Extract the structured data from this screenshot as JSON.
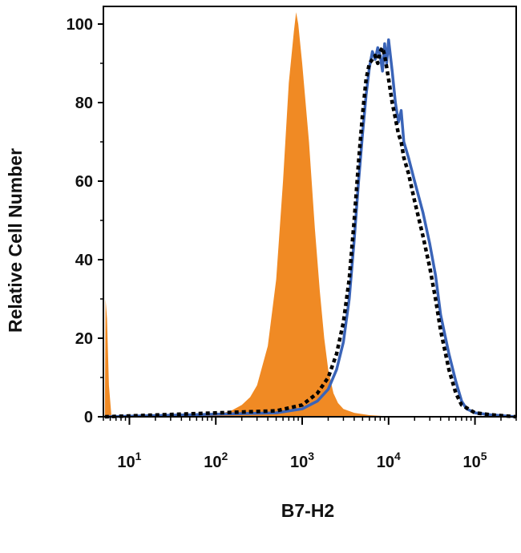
{
  "chart_data": {
    "type": "area",
    "title": "",
    "xlabel": "B7-H2",
    "ylabel": "Relative Cell Number",
    "xscale": "log",
    "xlim": [
      5,
      300000
    ],
    "ylim": [
      0,
      105
    ],
    "yticks": [
      0,
      20,
      40,
      60,
      80,
      100
    ],
    "xticks": [
      {
        "value": 10,
        "base": "10",
        "exp": "1"
      },
      {
        "value": 100,
        "base": "10",
        "exp": "2"
      },
      {
        "value": 1000,
        "base": "10",
        "exp": "3"
      },
      {
        "value": 10000,
        "base": "10",
        "exp": "4"
      },
      {
        "value": 100000,
        "base": "10",
        "exp": "5"
      }
    ],
    "grid": false,
    "legend": "none",
    "series": [
      {
        "style": "filled",
        "color": "#f08a24",
        "x": [
          5.2,
          5.3,
          5.5,
          5.8,
          6.2,
          50,
          100,
          150,
          200,
          250,
          300,
          400,
          500,
          600,
          700,
          800,
          850,
          900,
          1000,
          1200,
          1400,
          1600,
          1800,
          2000,
          2300,
          2600,
          3000,
          4000,
          6000,
          10000,
          300000
        ],
        "y": [
          0,
          30,
          25,
          8,
          0,
          0,
          0.5,
          1.5,
          3,
          5,
          8,
          18,
          35,
          60,
          85,
          98,
          103,
          100,
          90,
          70,
          48,
          32,
          20,
          12,
          6,
          3.5,
          2,
          1,
          0.4,
          0.1,
          0
        ]
      },
      {
        "style": "solid",
        "color": "#3a64b8",
        "x": [
          5.2,
          500,
          1000,
          1500,
          2000,
          2500,
          3000,
          3500,
          4000,
          4500,
          5000,
          5500,
          6000,
          6500,
          7000,
          7500,
          8000,
          8500,
          9000,
          9500,
          10000,
          11000,
          12000,
          13000,
          14000,
          15000,
          17000,
          20000,
          25000,
          30000,
          35000,
          40000,
          50000,
          60000,
          70000,
          80000,
          100000,
          150000,
          300000
        ],
        "y": [
          0,
          1,
          2,
          4,
          7,
          12,
          19,
          30,
          45,
          60,
          72,
          82,
          89,
          93,
          91,
          94,
          92,
          88,
          95,
          90,
          96,
          88,
          80,
          75,
          78,
          70,
          66,
          60,
          52,
          44,
          36,
          26,
          16,
          9,
          4,
          2,
          1,
          0.5,
          0
        ]
      },
      {
        "style": "dotted",
        "color": "#000000",
        "x": [
          5.2,
          500,
          1000,
          1500,
          2000,
          2500,
          3000,
          3500,
          4000,
          4500,
          5000,
          5500,
          6000,
          6500,
          7000,
          7500,
          8000,
          8500,
          9000,
          9500,
          10000,
          11000,
          12000,
          13000,
          14000,
          15000,
          17000,
          20000,
          25000,
          30000,
          35000,
          40000,
          50000,
          60000,
          70000,
          100000,
          150000,
          300000
        ],
        "y": [
          0,
          1.5,
          3,
          6,
          10,
          16,
          24,
          35,
          50,
          65,
          77,
          86,
          90,
          91,
          92,
          90,
          93,
          94,
          92,
          89,
          86,
          80,
          76,
          72,
          70,
          66,
          62,
          55,
          46,
          38,
          30,
          22,
          12,
          6,
          3,
          1,
          0.5,
          0
        ]
      }
    ]
  }
}
